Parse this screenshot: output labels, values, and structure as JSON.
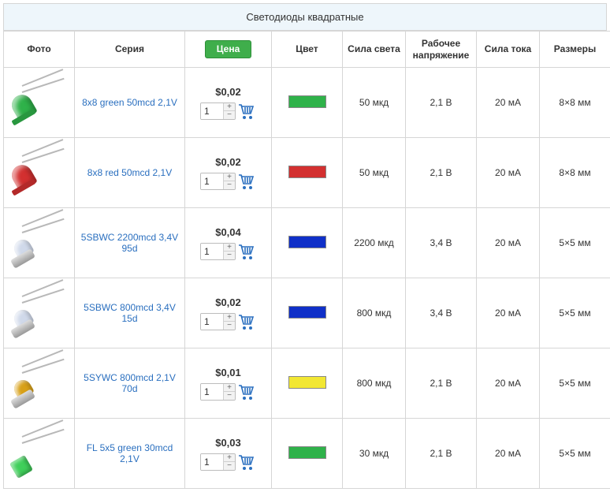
{
  "title": "Светодиоды квадратные",
  "headers": {
    "photo": "Фото",
    "series": "Серия",
    "price": "Цена",
    "color": "Цвет",
    "luminous": "Сила света",
    "voltage": "Рабочее напряжение",
    "current": "Сила тока",
    "size": "Размеры"
  },
  "default_qty": "1",
  "rows": [
    {
      "series": "8x8 green 50mcd 2,1V",
      "price": "$0,02",
      "swatch_color": "#2fb24a",
      "luminous": "50 мкд",
      "voltage": "2,1 В",
      "current": "20 мА",
      "size": "8×8 мм",
      "photo_style": "A",
      "photo_color": "#2fb24a"
    },
    {
      "series": "8x8 red 50mcd 2,1V",
      "price": "$0,02",
      "swatch_color": "#d33030",
      "luminous": "50 мкд",
      "voltage": "2,1 В",
      "current": "20 мА",
      "size": "8×8 мм",
      "photo_style": "A",
      "photo_color": "#d33030"
    },
    {
      "series": "5SBWC 2200mcd 3,4V 95d",
      "price": "$0,04",
      "swatch_color": "#1030c8",
      "luminous": "2200 мкд",
      "voltage": "3,4 В",
      "current": "20 мА",
      "size": "5×5 мм",
      "photo_style": "B",
      "photo_color": "rgba(200,210,230,0.85)"
    },
    {
      "series": "5SBWC 800mcd 3,4V 15d",
      "price": "$0,02",
      "swatch_color": "#1030c8",
      "luminous": "800 мкд",
      "voltage": "3,4 В",
      "current": "20 мА",
      "size": "5×5 мм",
      "photo_style": "B",
      "photo_color": "rgba(200,210,230,0.85)"
    },
    {
      "series": "5SYWC 800mcd 2,1V 70d",
      "price": "$0,01",
      "swatch_color": "#f2e733",
      "luminous": "800 мкд",
      "voltage": "2,1 В",
      "current": "20 мА",
      "size": "5×5 мм",
      "photo_style": "B",
      "photo_color": "#d8a017"
    },
    {
      "series": "FL 5x5 green 30mcd 2,1V",
      "price": "$0,03",
      "swatch_color": "#2fb24a",
      "luminous": "30 мкд",
      "voltage": "2,1 В",
      "current": "20 мА",
      "size": "5×5 мм",
      "photo_style": "C",
      "photo_color": "#3fcf5a"
    }
  ]
}
